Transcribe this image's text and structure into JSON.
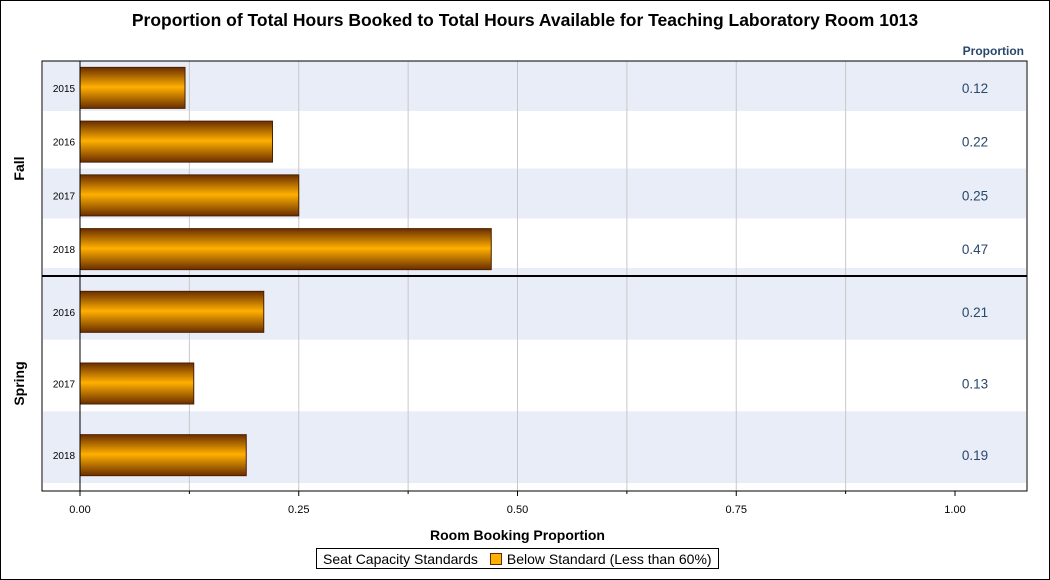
{
  "colors": {
    "bar_top": "#6a2e00",
    "bar_mid": "#ffb000",
    "bar_bottom": "#6a2e00",
    "band": "#e9edf7",
    "grid": "#c8c8c8",
    "value_label": "#27476b"
  },
  "chart_data": {
    "type": "bar",
    "orientation": "horizontal",
    "title": "Proportion of Total Hours Booked to Total Hours Available for Teaching Laboratory Room 1013",
    "xlabel": "Room Booking Proportion",
    "xlim": [
      0,
      1.07
    ],
    "x_ticks": [
      "0.00",
      "0.25",
      "0.50",
      "0.75",
      "1.00"
    ],
    "x_tick_values": [
      0,
      0.25,
      0.5,
      0.75,
      1.0
    ],
    "grid": true,
    "value_column_header": "Proportion",
    "panels": [
      {
        "name": "Fall",
        "categories": [
          "2015",
          "2016",
          "2017",
          "2018"
        ],
        "values": [
          0.12,
          0.22,
          0.25,
          0.47
        ],
        "value_labels": [
          "0.12",
          "0.22",
          "0.25",
          "0.47"
        ]
      },
      {
        "name": "Spring",
        "categories": [
          "2016",
          "2017",
          "2018"
        ],
        "values": [
          0.21,
          0.13,
          0.19
        ],
        "value_labels": [
          "0.21",
          "0.13",
          "0.19"
        ]
      }
    ],
    "legend": {
      "position": "bottom",
      "title": "Seat Capacity Standards",
      "entries": [
        "Below Standard (Less than 60%)"
      ]
    }
  }
}
